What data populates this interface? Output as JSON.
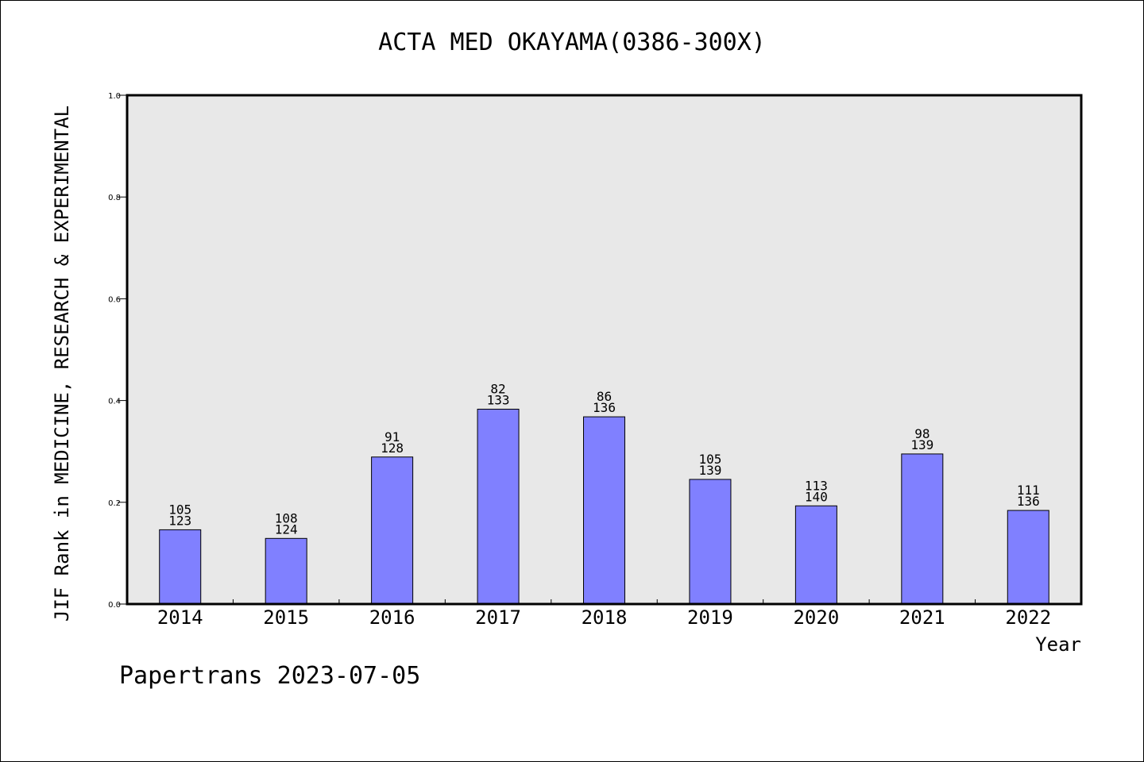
{
  "title": "ACTA MED OKAYAMA(0386-300X)",
  "footer": "Papertrans 2023-07-05",
  "chart_data": {
    "type": "bar",
    "title": "ACTA MED OKAYAMA(0386-300X)",
    "xlabel": "Year",
    "ylabel": "JIF Rank in MEDICINE, RESEARCH & EXPERIMENTAL",
    "ylim": [
      0,
      1.0
    ],
    "yticks": [
      "0.0",
      "0.2",
      "0.4",
      "0.6",
      "0.8",
      "1.0"
    ],
    "grid": false,
    "categories": [
      "2014",
      "2015",
      "2016",
      "2017",
      "2018",
      "2019",
      "2020",
      "2021",
      "2022"
    ],
    "rank": [
      105,
      108,
      91,
      82,
      86,
      105,
      113,
      98,
      111
    ],
    "total": [
      123,
      124,
      128,
      133,
      136,
      139,
      140,
      139,
      136
    ],
    "values": [
      0.146,
      0.129,
      0.289,
      0.383,
      0.368,
      0.245,
      0.193,
      0.295,
      0.184
    ],
    "bar_color": "#8080ff",
    "plot_background": "#e8e8e8"
  }
}
